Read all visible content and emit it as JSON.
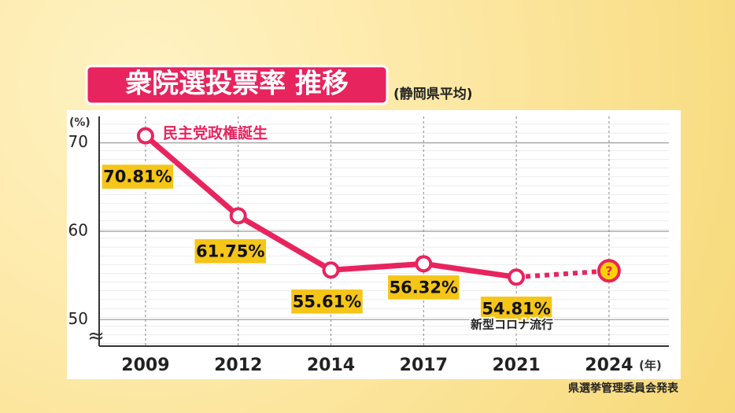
{
  "chart_data": {
    "type": "line",
    "title": "衆院選投票率 推移",
    "subtitle": "(静岡県平均)",
    "y_unit": "(%)",
    "x_unit": "(年)",
    "categories": [
      "2009",
      "2012",
      "2014",
      "2017",
      "2021",
      "2024"
    ],
    "values": [
      70.81,
      61.75,
      55.61,
      56.32,
      54.81,
      null
    ],
    "value_labels": [
      "70.81%",
      "61.75%",
      "55.61%",
      "56.32%",
      "54.81%",
      null
    ],
    "color": "#e8245e",
    "ylim": [
      47,
      73
    ],
    "yticks": [
      50,
      60,
      70
    ],
    "grid": true,
    "annotations": [
      "民主党政権誕生",
      "新型コロナ流行"
    ],
    "pending_marker": "?",
    "source": "県選挙管理委員会発表"
  }
}
